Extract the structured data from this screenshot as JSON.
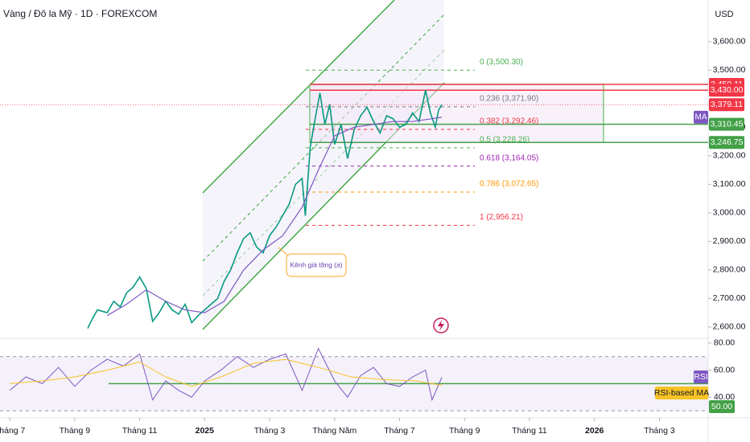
{
  "chart_data": {
    "type": "line",
    "title": "Vàng / Đô la Mỹ · 1D · FOREXCOM",
    "currency": "USD",
    "annotation": "Kênh giá tăng (a)",
    "xlim": [
      -0.3,
      21.5
    ],
    "xticks": [
      {
        "value": 0,
        "label": "Tháng 7"
      },
      {
        "value": 2,
        "label": "Tháng 9"
      },
      {
        "value": 4,
        "label": "Tháng 11"
      },
      {
        "value": 6,
        "label": "2025"
      },
      {
        "value": 8,
        "label": "Tháng 3"
      },
      {
        "value": 10,
        "label": "Tháng Năm"
      },
      {
        "value": 12,
        "label": "Tháng 7"
      },
      {
        "value": 14,
        "label": "Tháng 9"
      },
      {
        "value": 16,
        "label": "Tháng 11"
      },
      {
        "value": 18,
        "label": "2026"
      },
      {
        "value": 20,
        "label": "Tháng 3"
      }
    ],
    "ylim": [
      2563,
      3746
    ],
    "yticks": [
      {
        "value": 2600,
        "label": "2,600.00"
      },
      {
        "value": 2700,
        "label": "2,700.00"
      },
      {
        "value": 2800,
        "label": "2,800.00"
      },
      {
        "value": 2900,
        "label": "2,900.00"
      },
      {
        "value": 3000,
        "label": "3,000.00"
      },
      {
        "value": 3100,
        "label": "3,100.00"
      },
      {
        "value": 3200,
        "label": "3,200.00"
      },
      {
        "value": 3300,
        "label": "3,300.00"
      },
      {
        "value": 3500,
        "label": "3,500.00"
      },
      {
        "value": 3600,
        "label": "3,600.00"
      }
    ],
    "series": [
      {
        "color": "#089981",
        "x": [
          2.4,
          2.55,
          2.7,
          2.85,
          3.0,
          3.2,
          3.4,
          3.6,
          3.8,
          4.0,
          4.2,
          4.4,
          4.6,
          4.8,
          5.0,
          5.2,
          5.4,
          5.6,
          5.8,
          6.0,
          6.2,
          6.4,
          6.6,
          6.8,
          7.0,
          7.2,
          7.4,
          7.6,
          7.8,
          8.0,
          8.2,
          8.4,
          8.6,
          8.8,
          9.0,
          9.1,
          9.25,
          9.4,
          9.55,
          9.7,
          9.85,
          10.0,
          10.2,
          10.4,
          10.6,
          10.8,
          11.0,
          11.2,
          11.4,
          11.6,
          11.8,
          12.0,
          12.2,
          12.4,
          12.6,
          12.8,
          12.95,
          13.1,
          13.2,
          13.3
        ],
        "values": [
          2595,
          2630,
          2660,
          2655,
          2650,
          2690,
          2670,
          2720,
          2740,
          2775,
          2735,
          2620,
          2650,
          2690,
          2660,
          2645,
          2680,
          2615,
          2640,
          2660,
          2680,
          2700,
          2760,
          2800,
          2860,
          2910,
          2930,
          2880,
          2860,
          2920,
          2950,
          2990,
          3030,
          3100,
          3120,
          2990,
          3230,
          3330,
          3420,
          3310,
          3380,
          3240,
          3310,
          3190,
          3290,
          3340,
          3370,
          3320,
          3280,
          3340,
          3330,
          3300,
          3310,
          3350,
          3320,
          3430,
          3350,
          3300,
          3360,
          3379.11
        ]
      },
      {
        "name": "MA",
        "color": "#7e57c2",
        "x": [
          3.0,
          3.6,
          4.2,
          4.8,
          5.4,
          6.0,
          6.6,
          7.2,
          7.8,
          8.4,
          9.0,
          9.5,
          10.0,
          10.6,
          11.2,
          11.8,
          12.4,
          13.0,
          13.3
        ],
        "values": [
          2640,
          2680,
          2730,
          2690,
          2660,
          2650,
          2690,
          2800,
          2870,
          2920,
          3020,
          3150,
          3270,
          3300,
          3310,
          3320,
          3320,
          3330,
          3335
        ]
      }
    ],
    "price_tags": [
      {
        "value": 3450.11,
        "label": "3,450.11",
        "color": "#f23645"
      },
      {
        "value": 3430.0,
        "label": "3,430.00",
        "color": "#f23645"
      },
      {
        "value": 3379.11,
        "label": "3,379.11",
        "color": "#f23645"
      },
      {
        "value": 3310.45,
        "label": "3,310.45",
        "color": "#43a047"
      },
      {
        "value": 3246.75,
        "label": "3,246.75",
        "color": "#43a047"
      }
    ],
    "fib_levels": [
      {
        "value": 3500.3,
        "label": "0 (3,500.30)",
        "color": "#4caf50"
      },
      {
        "value": 3371.9,
        "label": "0.236 (3,371.90)",
        "color": "#787b86"
      },
      {
        "value": 3292.46,
        "label": "0.382 (3,292.46)",
        "color": "#f23645"
      },
      {
        "value": 3228.26,
        "label": "0.5 (3,228.26)",
        "color": "#4caf50"
      },
      {
        "value": 3164.05,
        "label": "0.618 (3,164.05)",
        "color": "#9c27b0"
      },
      {
        "value": 3072.65,
        "label": "0.786 (3,072.65)",
        "color": "#ff9800"
      },
      {
        "value": 2956.21,
        "label": "1 (2,956.21)",
        "color": "#f23645"
      }
    ],
    "rsi": {
      "ylim": [
        24.7,
        83.5
      ],
      "yticks": [
        {
          "value": 40,
          "label": "40.00"
        },
        {
          "value": 60,
          "label": "60.00"
        },
        {
          "value": 80,
          "label": "80.00"
        }
      ],
      "band": [
        30,
        70
      ],
      "level": {
        "value": 50,
        "label": "50.00",
        "color": "#43a047"
      },
      "series": [
        {
          "name": "RSI",
          "color": "#7e57c2",
          "x": [
            0,
            0.5,
            1.0,
            1.5,
            2.0,
            2.5,
            3.0,
            3.5,
            4.0,
            4.4,
            4.8,
            5.2,
            5.6,
            6.0,
            6.5,
            7.0,
            7.5,
            8.0,
            8.5,
            9.0,
            9.5,
            10.0,
            10.4,
            10.8,
            11.2,
            11.6,
            12.0,
            12.4,
            12.8,
            13.0,
            13.3
          ],
          "values": [
            45,
            55,
            50,
            62,
            48,
            60,
            68,
            63,
            72,
            38,
            52,
            45,
            40,
            52,
            60,
            70,
            62,
            68,
            72,
            45,
            76,
            52,
            40,
            56,
            62,
            50,
            48,
            55,
            60,
            38,
            54.7
          ]
        },
        {
          "name": "RSI-based MA",
          "color": "#f7c325",
          "x": [
            0,
            1,
            2,
            3,
            4,
            4.8,
            5.6,
            6.5,
            7.5,
            8.5,
            9.5,
            10.5,
            11.5,
            12.5,
            13.3
          ],
          "values": [
            50,
            52,
            55,
            60,
            66,
            55,
            48,
            55,
            65,
            68,
            62,
            55,
            53,
            52,
            48.8
          ]
        }
      ]
    }
  }
}
